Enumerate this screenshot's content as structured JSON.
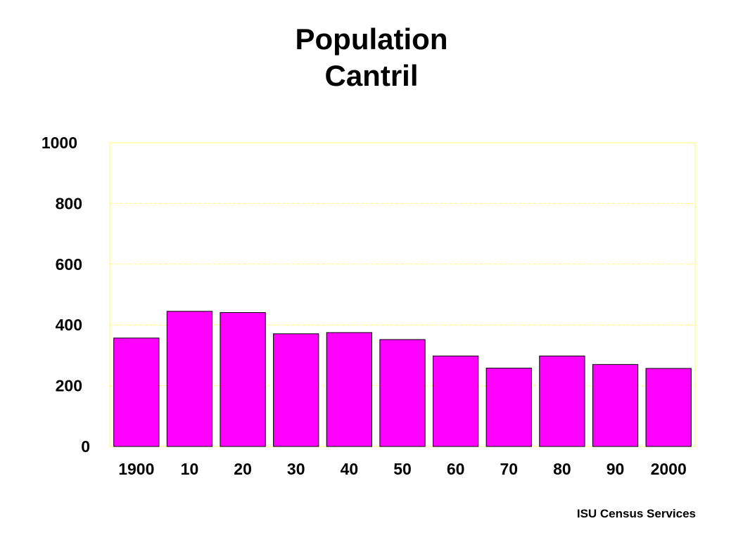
{
  "title": {
    "line1": "Population",
    "line2": "Cantril"
  },
  "credit": "ISU Census Services",
  "colors": {
    "bar_fill": "#ff00ff",
    "bar_stroke": "#000000",
    "grid": "#ffff66",
    "axis_frame": "#ffff66"
  },
  "chart_data": {
    "type": "bar",
    "categories": [
      "1900",
      "10",
      "20",
      "30",
      "40",
      "50",
      "60",
      "70",
      "80",
      "90",
      "2000"
    ],
    "values": [
      357,
      445,
      441,
      371,
      375,
      352,
      298,
      258,
      298,
      270,
      257
    ],
    "title": "Population Cantril",
    "xlabel": "",
    "ylabel": "",
    "ylim": [
      0,
      1000
    ],
    "yticks": [
      0,
      200,
      400,
      600,
      800,
      1000
    ],
    "grid": true,
    "legend": "none"
  }
}
